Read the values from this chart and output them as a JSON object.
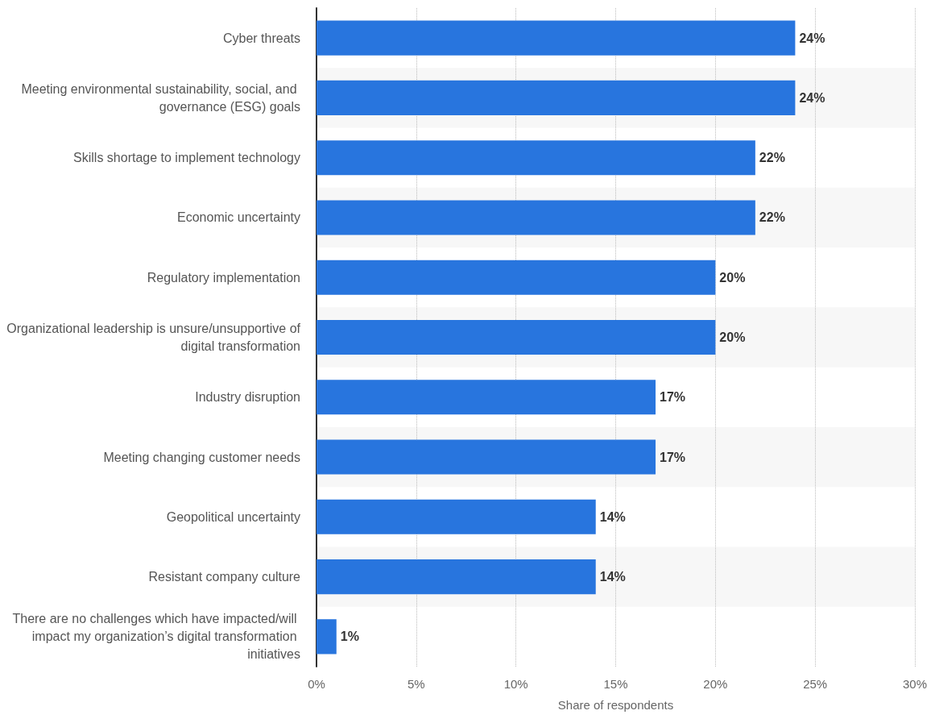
{
  "chart_data": {
    "type": "bar",
    "orientation": "horizontal",
    "xlabel": "Share of respondents",
    "categories": [
      "Cyber threats",
      "Meeting environmental sustainability, social, and governance (ESG) goals",
      "Skills shortage to implement technology",
      "Economic uncertainty",
      "Regulatory implementation",
      "Organizational leadership is unsure/unsupportive of digital transformation",
      "Industry disruption",
      "Meeting changing customer needs",
      "Geopolitical uncertainty",
      "Resistant company culture",
      "There are no challenges which have impacted/will impact my organization’s digital transformation initiatives"
    ],
    "values": [
      24,
      24,
      22,
      22,
      20,
      20,
      17,
      17,
      14,
      14,
      1
    ],
    "value_labels": [
      "24%",
      "24%",
      "22%",
      "22%",
      "20%",
      "20%",
      "17%",
      "17%",
      "14%",
      "14%",
      "1%"
    ],
    "color": "#2875de",
    "xlim": [
      0,
      30
    ],
    "xticks": [
      {
        "value": 0,
        "label": "0%"
      },
      {
        "value": 5,
        "label": "5%"
      },
      {
        "value": 10,
        "label": "10%"
      },
      {
        "value": 15,
        "label": "15%"
      },
      {
        "value": 20,
        "label": "20%"
      },
      {
        "value": 25,
        "label": "25%"
      },
      {
        "value": 30,
        "label": "30%"
      }
    ],
    "grid": "x"
  }
}
